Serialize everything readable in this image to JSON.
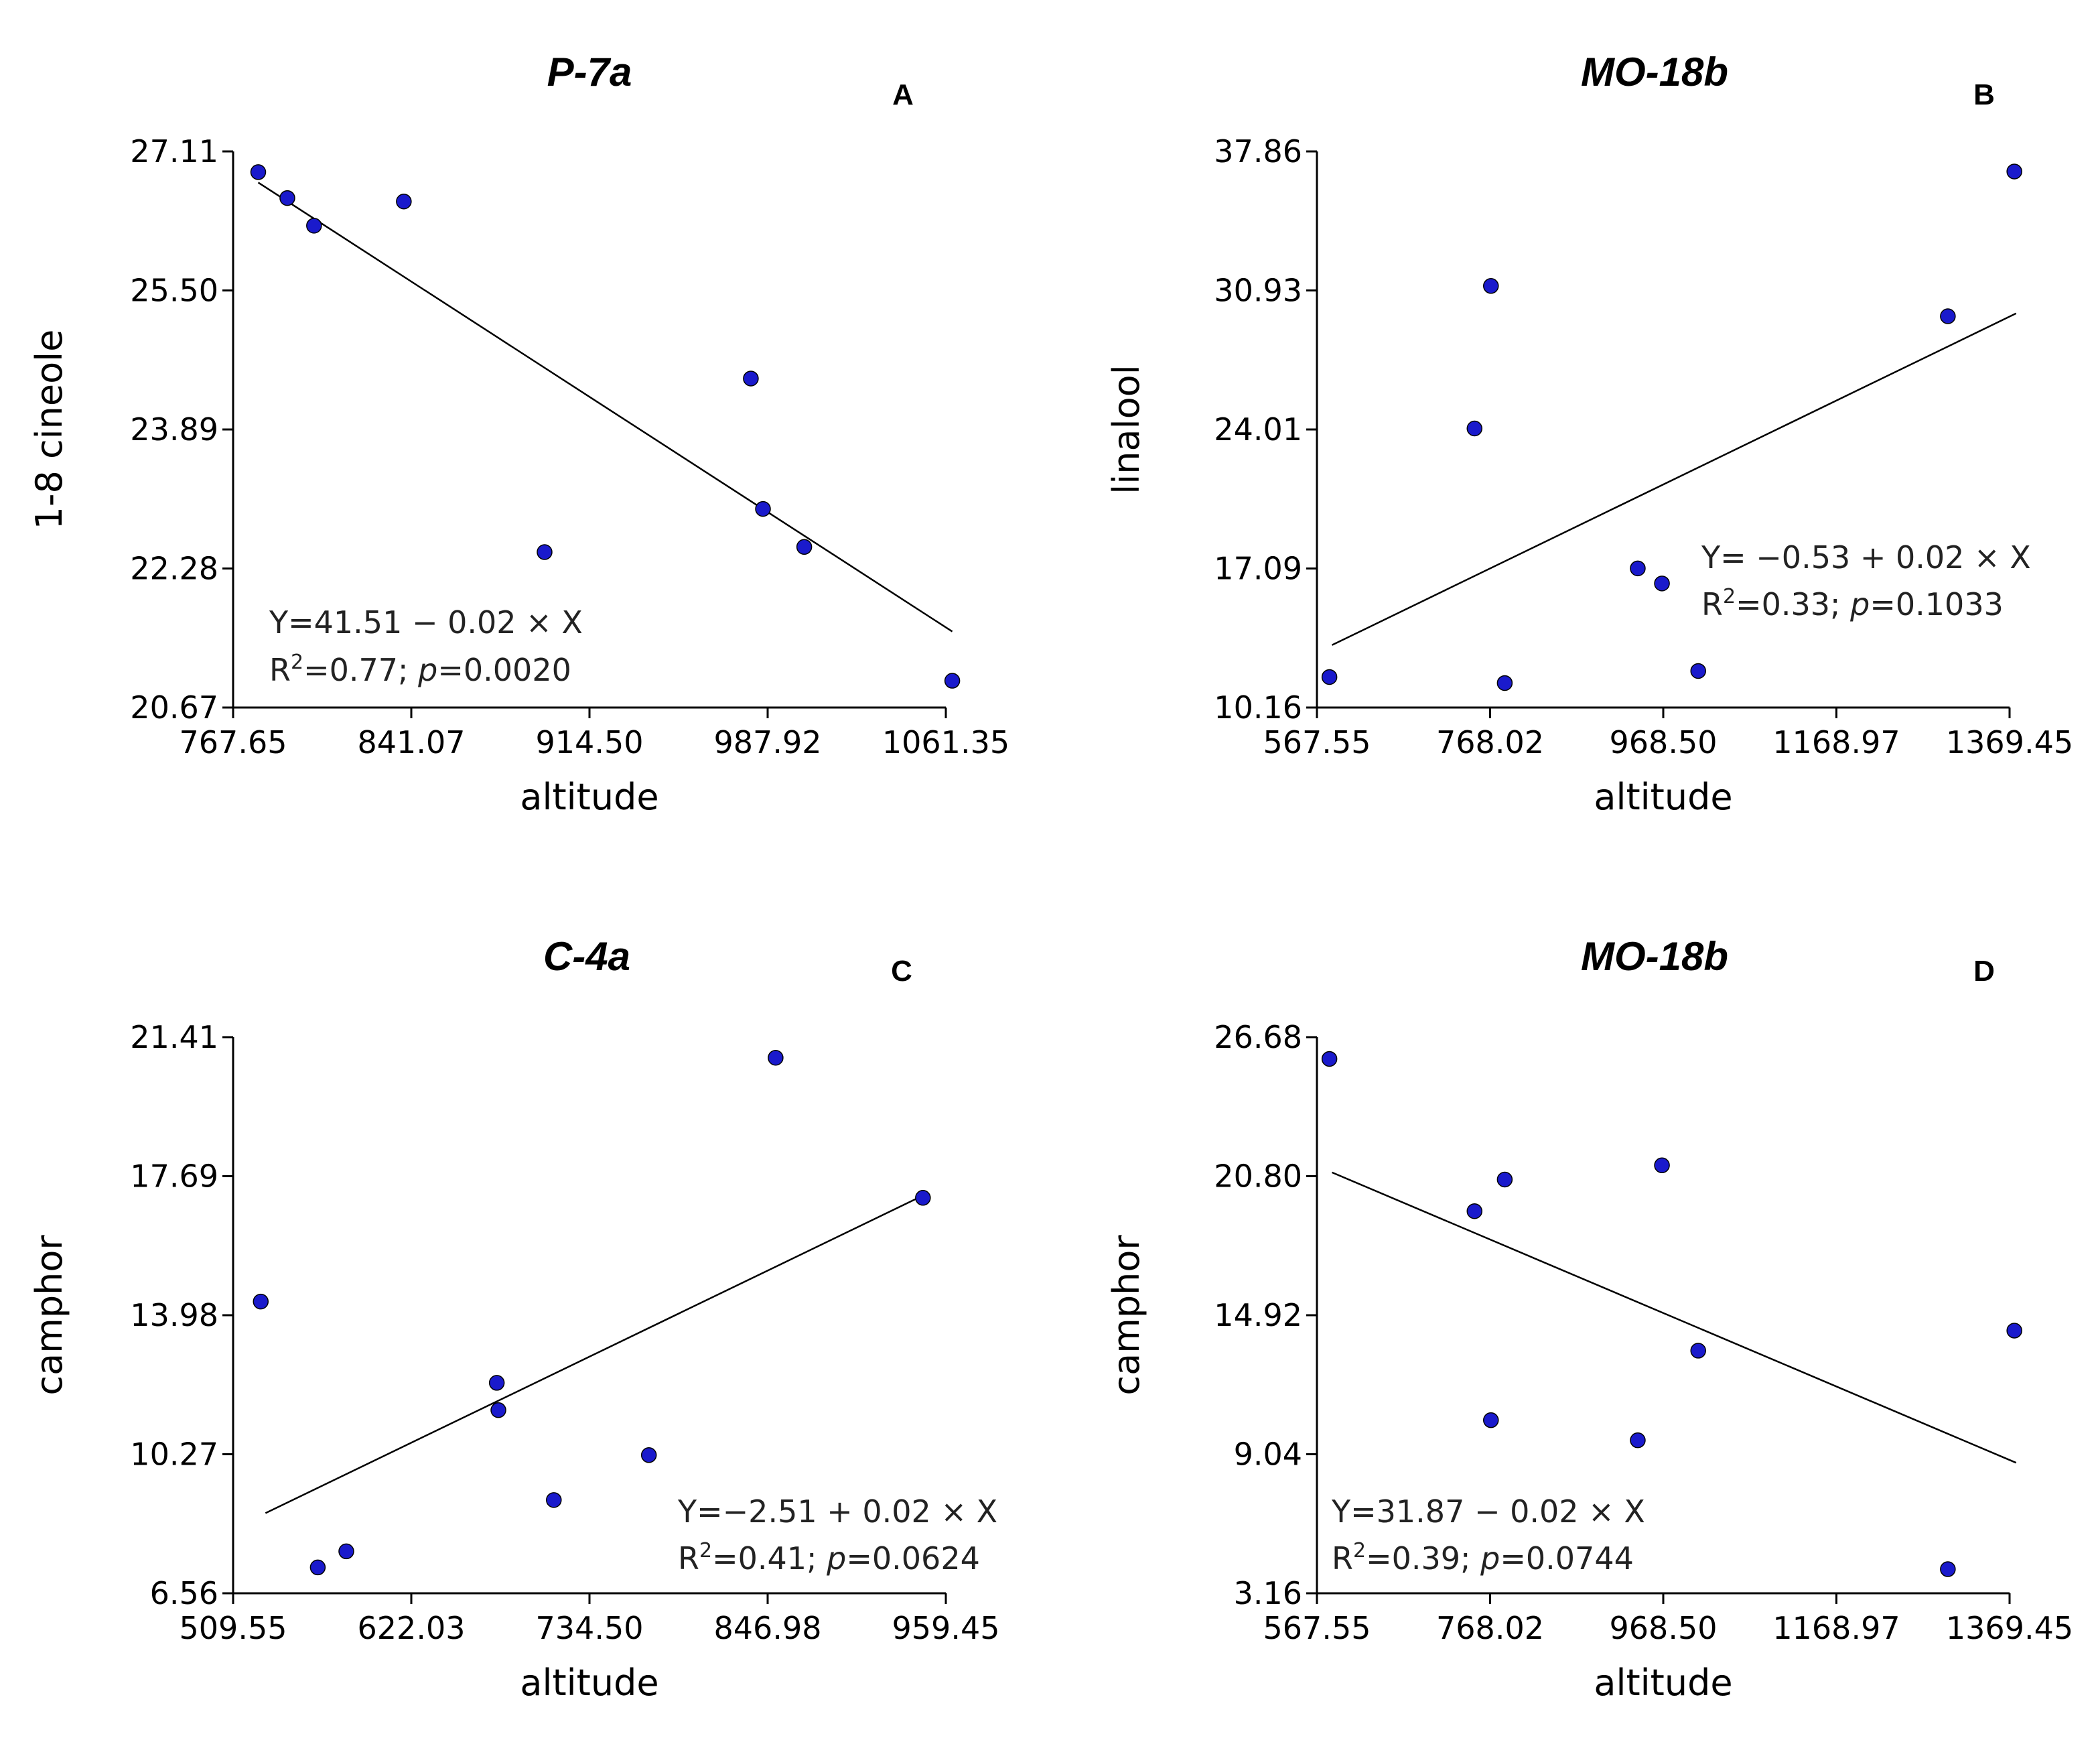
{
  "colors": {
    "point": "#1a1acc",
    "line": "#000000",
    "axis": "#000000"
  },
  "chart_data": [
    {
      "type": "scatter",
      "title": "P-7a",
      "panel": "A",
      "xlabel": "altitude",
      "ylabel": "1-8 cineole",
      "xlim": [
        767.65,
        1061.35
      ],
      "ylim": [
        20.67,
        27.11
      ],
      "xticks": [
        "767.65",
        "841.07",
        "914.50",
        "987.92",
        "1061.35"
      ],
      "yticks": [
        "20.67",
        "22.28",
        "23.89",
        "25.50",
        "27.11"
      ],
      "points": [
        {
          "x": 778,
          "y": 26.87
        },
        {
          "x": 790,
          "y": 26.57
        },
        {
          "x": 801,
          "y": 26.25
        },
        {
          "x": 838,
          "y": 26.53
        },
        {
          "x": 896,
          "y": 22.47
        },
        {
          "x": 981,
          "y": 24.48
        },
        {
          "x": 986,
          "y": 22.97
        },
        {
          "x": 1003,
          "y": 22.53
        },
        {
          "x": 1064,
          "y": 20.98
        }
      ],
      "fit": {
        "x1": 778,
        "y1": 26.75,
        "x2": 1064,
        "y2": 21.55
      },
      "equation": {
        "line1": "Y=41.51 − 0.02 × X",
        "r2_prefix": "R",
        "r2_sup": "2",
        "r2_value": "=0.77; ",
        "p_label": "p",
        "p_value": "=0.0020"
      }
    },
    {
      "type": "scatter",
      "title": "MO-18b",
      "panel": "B",
      "xlabel": "altitude",
      "ylabel": "linalool",
      "xlim": [
        567.55,
        1369.45
      ],
      "ylim": [
        10.16,
        37.86
      ],
      "xticks": [
        "567.55",
        "768.02",
        "968.50",
        "1168.97",
        "1369.45"
      ],
      "yticks": [
        "10.16",
        "17.09",
        "24.01",
        "30.93",
        "37.86"
      ],
      "points": [
        {
          "x": 582,
          "y": 11.68
        },
        {
          "x": 750,
          "y": 24.06
        },
        {
          "x": 769,
          "y": 31.16
        },
        {
          "x": 785,
          "y": 11.38
        },
        {
          "x": 939,
          "y": 17.09
        },
        {
          "x": 967,
          "y": 16.34
        },
        {
          "x": 1009,
          "y": 11.98
        },
        {
          "x": 1298,
          "y": 29.65
        },
        {
          "x": 1375,
          "y": 36.86
        }
      ],
      "fit": {
        "x1": 585,
        "y1": 13.27,
        "x2": 1377,
        "y2": 29.79
      },
      "equation": {
        "line1": "Y=  −0.53 + 0.02 × X",
        "r2_prefix": "R",
        "r2_sup": "2",
        "r2_value": "=0.33; ",
        "p_label": "p",
        "p_value": "=0.1033"
      }
    },
    {
      "type": "scatter",
      "title": "C-4a",
      "panel": "C",
      "xlabel": "altitude",
      "ylabel": "camphor",
      "xlim": [
        509.55,
        959.45
      ],
      "ylim": [
        6.56,
        21.41
      ],
      "xticks": [
        "509.55",
        "622.03",
        "734.50",
        "846.98",
        "959.45"
      ],
      "yticks": [
        "6.56",
        "10.27",
        "13.98",
        "17.69",
        "21.41"
      ],
      "points": [
        {
          "x": 527,
          "y": 14.35
        },
        {
          "x": 563,
          "y": 7.25
        },
        {
          "x": 581,
          "y": 7.68
        },
        {
          "x": 676,
          "y": 12.18
        },
        {
          "x": 677,
          "y": 11.45
        },
        {
          "x": 712,
          "y": 9.05
        },
        {
          "x": 772,
          "y": 10.25
        },
        {
          "x": 852,
          "y": 20.86
        },
        {
          "x": 945,
          "y": 17.12
        }
      ],
      "fit": {
        "x1": 530,
        "y1": 8.7,
        "x2": 946,
        "y2": 17.2
      },
      "equation": {
        "line1": "Y=−2.51 + 0.02 × X",
        "r2_prefix": "R",
        "r2_sup": "2",
        "r2_value": "=0.41; ",
        "p_label": "p",
        "p_value": "=0.0624"
      }
    },
    {
      "type": "scatter",
      "title": "MO-18b",
      "panel": "D",
      "xlabel": "altitude",
      "ylabel": "camphor",
      "xlim": [
        567.55,
        1369.45
      ],
      "ylim": [
        3.16,
        26.68
      ],
      "xticks": [
        "567.55",
        "768.02",
        "968.50",
        "1168.97",
        "1369.45"
      ],
      "yticks": [
        "3.16",
        "9.04",
        "14.92",
        "20.80",
        "26.68"
      ],
      "points": [
        {
          "x": 582,
          "y": 25.76
        },
        {
          "x": 750,
          "y": 19.32
        },
        {
          "x": 769,
          "y": 10.48
        },
        {
          "x": 785,
          "y": 20.66
        },
        {
          "x": 939,
          "y": 9.63
        },
        {
          "x": 967,
          "y": 21.26
        },
        {
          "x": 1009,
          "y": 13.42
        },
        {
          "x": 1298,
          "y": 4.18
        },
        {
          "x": 1375,
          "y": 14.27
        }
      ],
      "fit": {
        "x1": 585,
        "y1": 20.96,
        "x2": 1377,
        "y2": 8.68
      },
      "equation": {
        "line1": "Y=31.87 − 0.02 × X",
        "r2_prefix": "R",
        "r2_sup": "2",
        "r2_value": "=0.39; ",
        "p_label": "p",
        "p_value": "=0.0744"
      }
    }
  ]
}
